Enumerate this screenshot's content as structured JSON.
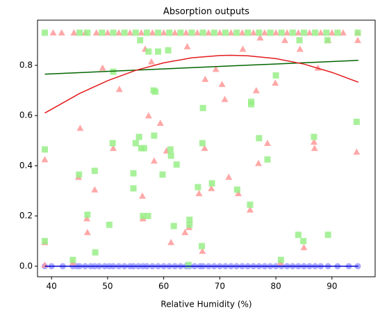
{
  "chart_data": {
    "type": "scatter",
    "title": "Absorption outputs",
    "xlabel": "Relative Humidity (%)",
    "xlim": [
      37.5,
      97.7
    ],
    "ylim": [
      -0.042,
      0.98
    ],
    "xticks": [
      40,
      50,
      60,
      70,
      80,
      90
    ],
    "yticks": [
      {
        "value": 0,
        "label": "0.0"
      },
      0.2,
      0.4,
      0.6,
      0.8
    ],
    "series": [
      {
        "type": "scatter",
        "marker": "o",
        "color": "#9999ff",
        "x": [
          38.8,
          40,
          42,
          43.8,
          44.5,
          45,
          46,
          47,
          47.7,
          48.5,
          49.5,
          50.3,
          51,
          52,
          53,
          54,
          54.6,
          55.5,
          56.3,
          57,
          58,
          59,
          60,
          61,
          62,
          63,
          64,
          64.6,
          65.5,
          66.5,
          67,
          68,
          69,
          70,
          71,
          72,
          73,
          74,
          75,
          76,
          77,
          78,
          79,
          80,
          81,
          82,
          83,
          84,
          85,
          86,
          87,
          88,
          89.3,
          91,
          93,
          94.6
        ],
        "values": [
          0,
          0,
          0,
          0,
          0,
          0,
          0,
          0,
          0,
          0,
          0,
          0,
          0,
          0,
          0,
          0,
          0,
          0,
          0,
          0,
          0,
          0,
          0,
          0,
          0,
          0,
          0,
          0,
          0,
          0,
          0,
          0,
          0,
          0,
          0,
          0,
          0,
          0,
          0,
          0,
          0,
          0,
          0,
          0,
          0,
          0,
          0,
          0,
          0,
          0,
          0,
          0,
          0,
          0,
          0,
          0
        ]
      },
      {
        "type": "scatter",
        "marker": "^",
        "color": "#ff9999",
        "x": [
          38.8,
          38.8,
          38.8,
          43.8,
          45.1,
          44.8,
          46.4,
          46.3,
          47.7,
          49.1,
          51,
          52.1,
          56.2,
          56.3,
          56.7,
          57.3,
          57.8,
          58.3,
          59.4,
          60.5,
          61.3,
          63.8,
          64.2,
          64.5,
          66.3,
          66.9,
          67.3,
          67.4,
          68.5,
          69.3,
          70.4,
          70.9,
          71.6,
          73.3,
          74.1,
          75.4,
          76.5,
          76.9,
          77.2,
          78.5,
          79.9,
          80.8,
          81.6,
          84.3,
          85,
          86.8,
          86.9,
          87.5,
          89.3,
          94.4,
          94.6,
          40.3,
          41.8,
          44,
          46,
          48,
          50,
          52,
          54,
          56,
          58,
          60,
          62,
          64,
          66,
          68,
          70,
          72,
          74,
          76,
          78,
          80,
          82,
          84,
          86,
          88,
          90,
          92,
          94.6
        ],
        "values": [
          0.425,
          0.095,
          0.005,
          0.015,
          0.55,
          0.355,
          0.135,
          0.19,
          0.305,
          0.79,
          0.47,
          0.705,
          0.28,
          0.19,
          0.865,
          0.6,
          0.815,
          0.42,
          0.57,
          0.46,
          0.095,
          0.135,
          0.875,
          0.155,
          0.29,
          0.06,
          0.47,
          0.745,
          0.31,
          0.785,
          0.725,
          0.665,
          0.355,
          0.29,
          0.865,
          0.225,
          0.7,
          0.41,
          0.91,
          0.49,
          0.73,
          0.015,
          0.9,
          0.865,
          0.075,
          0.495,
          0.47,
          0.79,
          0.9,
          0.455,
          0.9,
          0.93,
          0.93,
          0.93,
          0.93,
          0.93,
          0.93,
          0.93,
          0.93,
          0.93,
          0.93,
          0.93,
          0.93,
          0.93,
          0.93,
          0.93,
          0.93,
          0.93,
          0.93,
          0.93,
          0.93,
          0.93,
          0.93,
          0.93,
          0.93,
          0.93,
          0.93,
          0.93,
          0.93
        ]
      },
      {
        "type": "scatter",
        "marker": "s",
        "color": "#99ee88",
        "x": [
          38.8,
          38.8,
          43.8,
          44.9,
          46.4,
          47.7,
          47.8,
          50.3,
          50.9,
          51,
          54.6,
          54.6,
          55,
          55.6,
          55.8,
          56,
          56.3,
          56.5,
          57.3,
          57.2,
          58.2,
          58.5,
          58.3,
          59,
          59.8,
          60.8,
          61.2,
          61.3,
          61.8,
          62.3,
          64.6,
          64.6,
          64.4,
          66.1,
          66.8,
          67,
          66.9,
          68.6,
          73.1,
          75.4,
          75.6,
          75.6,
          77,
          78.5,
          80,
          80.9,
          84,
          84.2,
          84.9,
          86.8,
          89.3,
          89.2,
          94.4,
          38.8,
          45,
          46.4,
          49,
          51,
          53,
          55,
          57,
          59,
          61,
          63,
          65,
          67,
          69,
          71,
          73,
          75,
          77,
          79,
          81,
          83,
          85,
          87,
          89,
          91,
          94.6
        ],
        "values": [
          0.465,
          0.1,
          0.025,
          0.365,
          0.205,
          0.38,
          0.055,
          0.165,
          0.49,
          0.775,
          0.37,
          0.31,
          0.49,
          0.515,
          0.9,
          0.47,
          0.2,
          0.47,
          0.855,
          0.2,
          0.7,
          0.695,
          0.52,
          0.855,
          0.365,
          0.86,
          0.465,
          0.44,
          0.16,
          0.405,
          0.185,
          0.165,
          0.005,
          0.315,
          0.08,
          0.63,
          0.49,
          0.33,
          0.305,
          0.245,
          0.655,
          0.645,
          0.51,
          0.425,
          0.76,
          0.025,
          0.125,
          0.9,
          0.1,
          0.515,
          0.125,
          0.9,
          0.575,
          0.93,
          0.93,
          0.93,
          0.93,
          0.93,
          0.93,
          0.93,
          0.93,
          0.93,
          0.93,
          0.93,
          0.93,
          0.93,
          0.93,
          0.93,
          0.93,
          0.93,
          0.93,
          0.93,
          0.93,
          0.93,
          0.93,
          0.93,
          0.93,
          0.93,
          0.93
        ]
      },
      {
        "type": "line",
        "color": "#0000cc",
        "x": [
          38.8,
          94.7
        ],
        "values": [
          0,
          0
        ]
      },
      {
        "type": "line",
        "color": "#006400",
        "x": [
          38.8,
          94.7
        ],
        "values": [
          0.765,
          0.82
        ]
      },
      {
        "type": "line",
        "color": "#e31a1c",
        "x": [
          38.8,
          45,
          50,
          55,
          60,
          65,
          70,
          72,
          75,
          80,
          85,
          90,
          94.7
        ],
        "values": [
          0.61,
          0.688,
          0.739,
          0.78,
          0.81,
          0.83,
          0.839,
          0.84,
          0.838,
          0.827,
          0.805,
          0.772,
          0.733
        ]
      }
    ]
  }
}
